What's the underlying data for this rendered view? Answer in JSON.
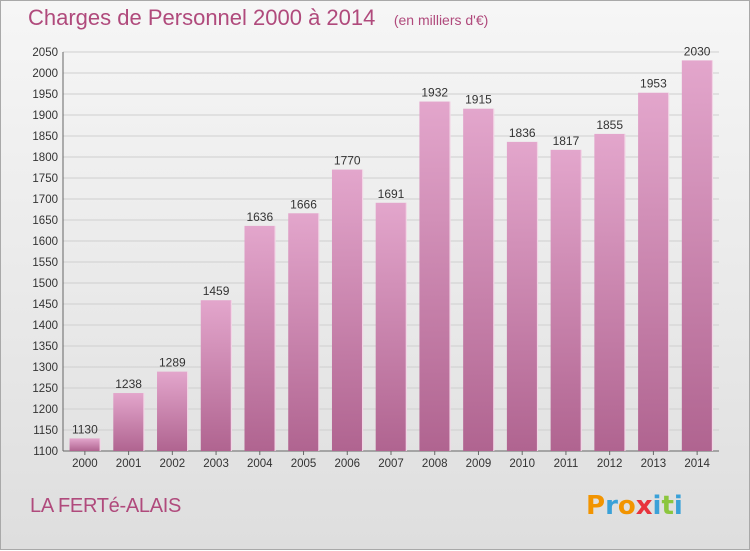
{
  "title": "Charges de Personnel 2000 à 2014",
  "subtitle": "(en milliers d'€)",
  "location": "LA FERTé-ALAIS",
  "brand": {
    "letters": [
      "P",
      "r",
      "o",
      "x",
      "i",
      "t",
      "i"
    ],
    "colors": [
      "#f29400",
      "#3aa1d8",
      "#f29400",
      "#e8333c",
      "#3aa1d8",
      "#8cc63e",
      "#3aa1d8"
    ]
  },
  "colors": {
    "bar_top": "#e3a6cc",
    "bar_bottom": "#b06490",
    "grid": "#cfcfcf",
    "text": "#333333",
    "accent": "#b04a7c"
  },
  "chart_data": {
    "type": "bar",
    "title": "Charges de Personnel 2000 à 2014",
    "subtitle": "(en milliers d'€)",
    "categories": [
      "2000",
      "2001",
      "2002",
      "2003",
      "2004",
      "2005",
      "2006",
      "2007",
      "2008",
      "2009",
      "2010",
      "2011",
      "2012",
      "2013",
      "2014"
    ],
    "values": [
      1130,
      1238,
      1289,
      1459,
      1636,
      1666,
      1770,
      1691,
      1932,
      1915,
      1836,
      1817,
      1855,
      1953,
      2030
    ],
    "data_labels": [
      "1130",
      "1238",
      "1289",
      "1459",
      "1636",
      "1666",
      "1770",
      "1691",
      "1932",
      "1915",
      "1836",
      "1817",
      "1855",
      "1953",
      "2030"
    ],
    "ylim": [
      1100,
      2050
    ],
    "yticks": [
      1100,
      1150,
      1200,
      1250,
      1300,
      1350,
      1400,
      1450,
      1500,
      1550,
      1600,
      1650,
      1700,
      1750,
      1800,
      1850,
      1900,
      1950,
      2000,
      2050
    ],
    "grid": true,
    "legend": "none"
  }
}
